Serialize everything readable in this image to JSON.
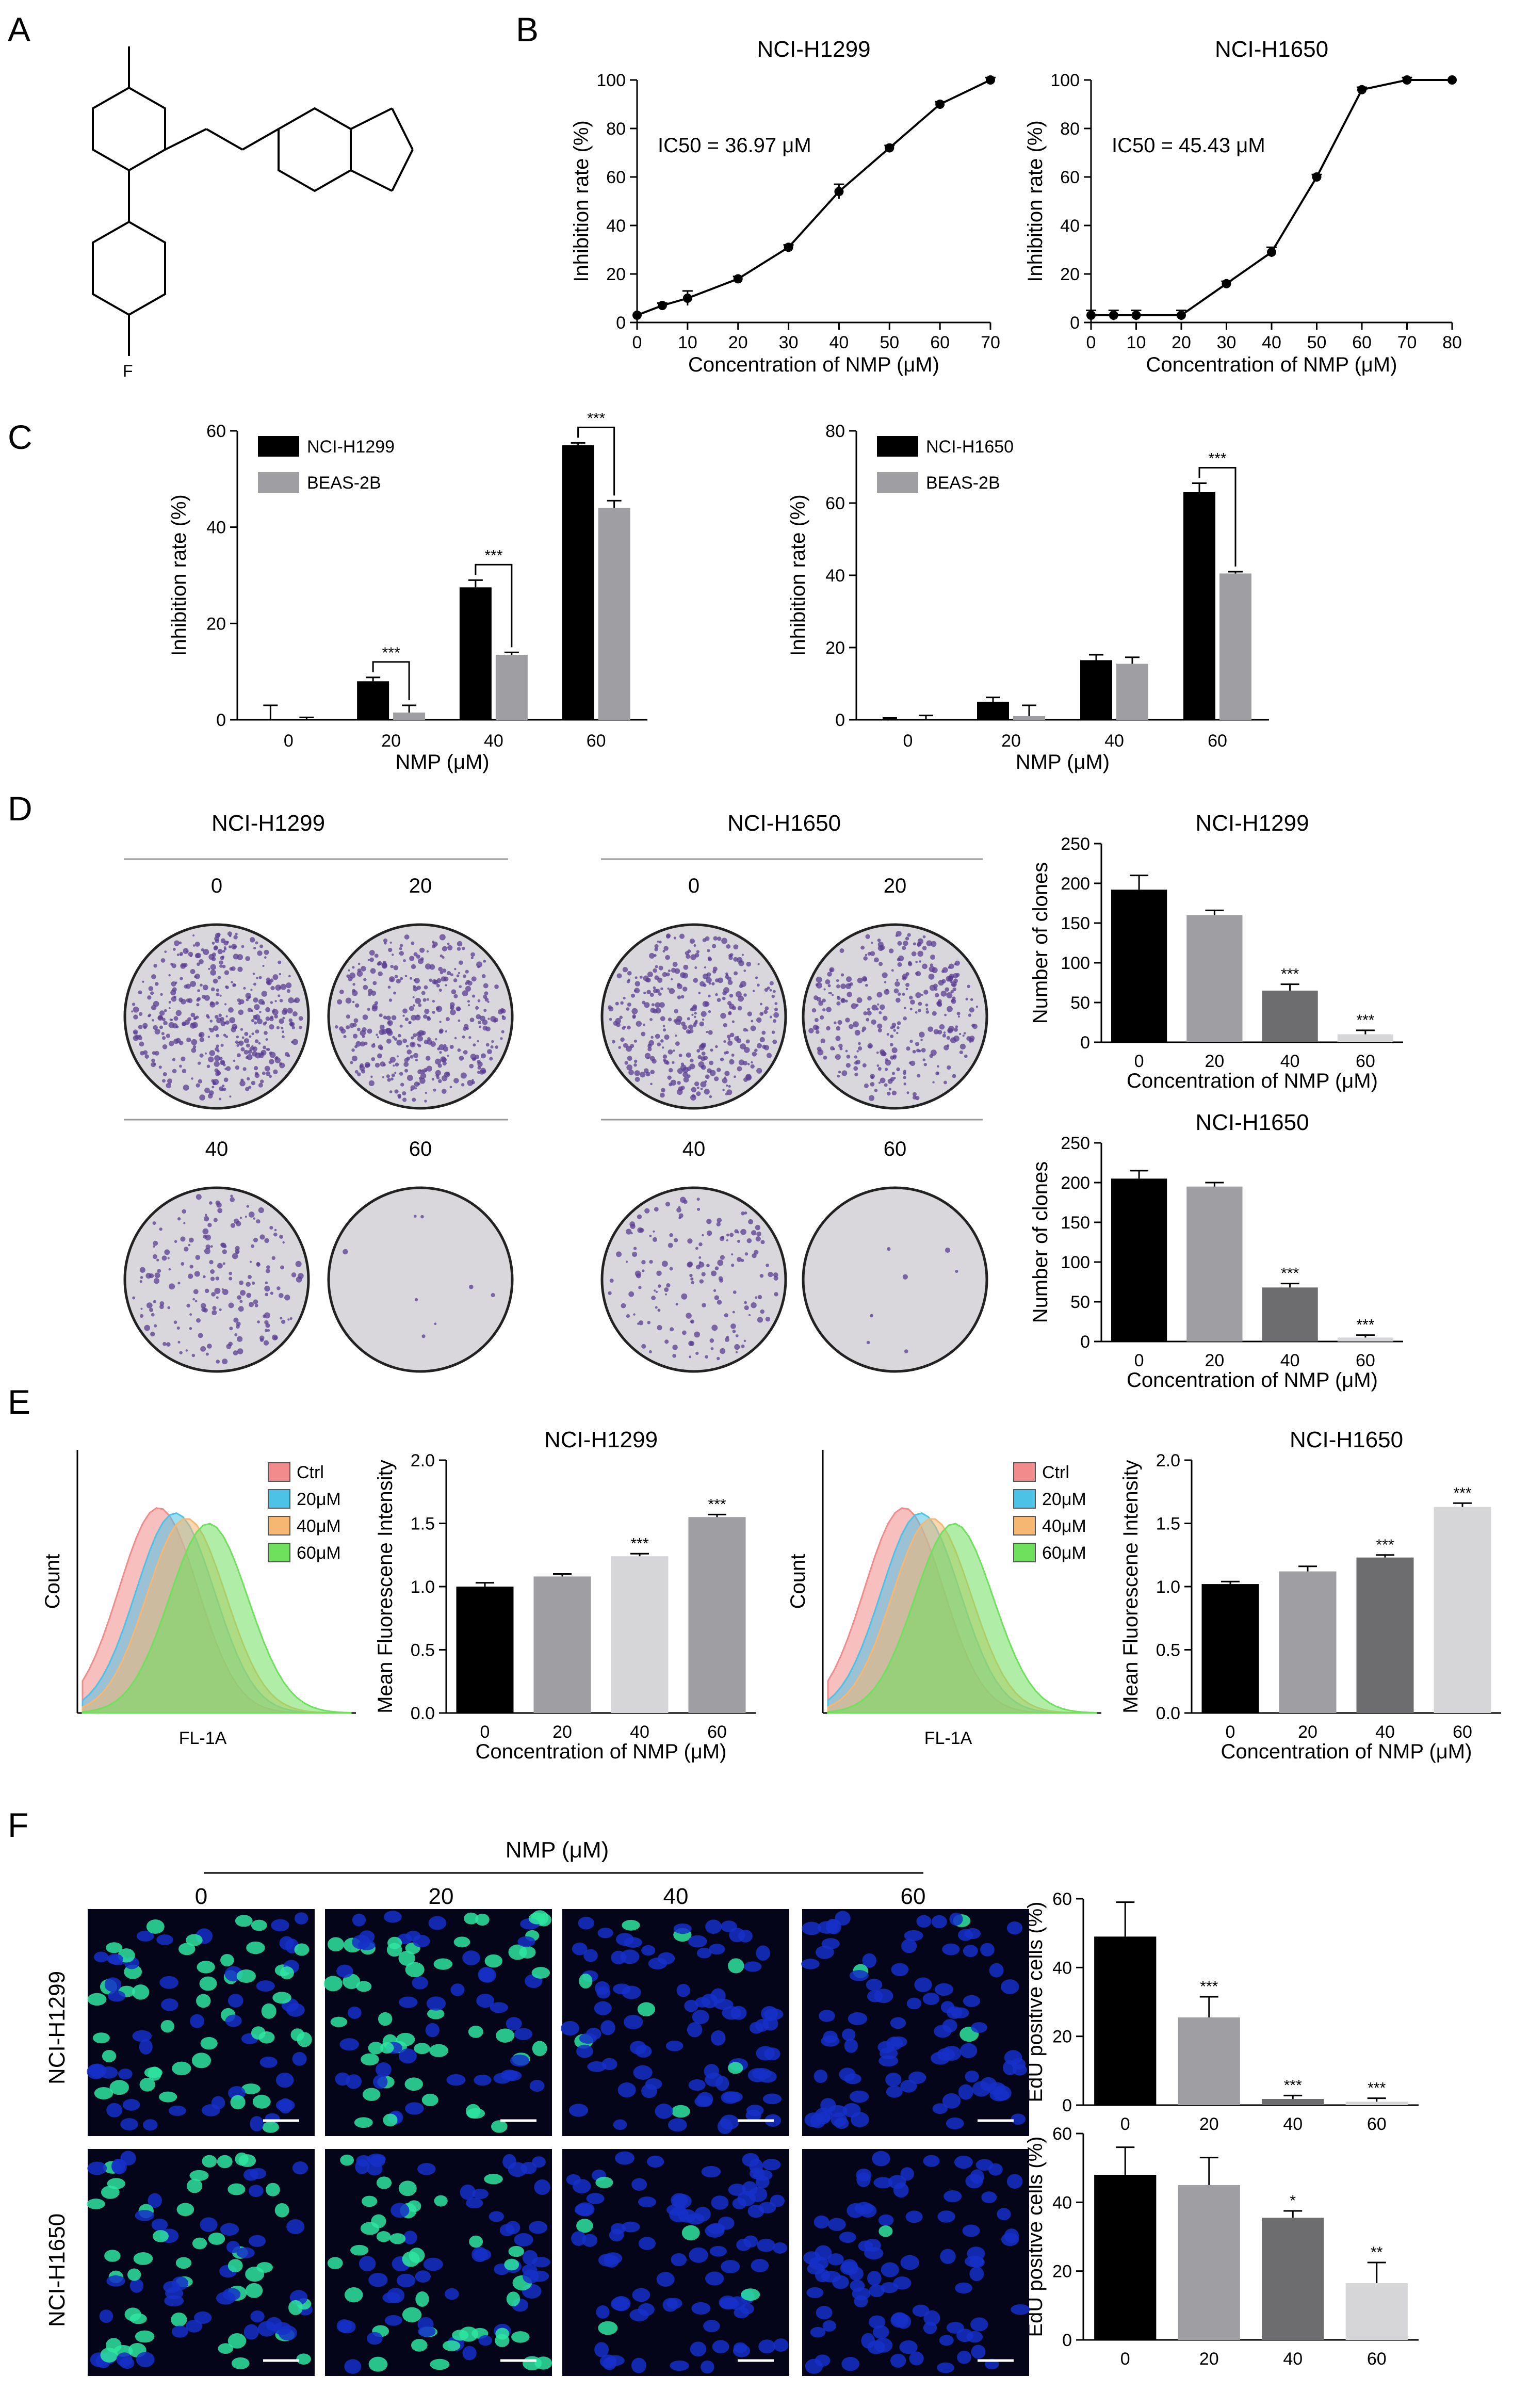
{
  "panel_labels": [
    "A",
    "B",
    "C",
    "D",
    "E",
    "F"
  ],
  "structure": {
    "atom_label": "F"
  },
  "chart_data": [
    {
      "id": "B1",
      "type": "line",
      "title": "NCI-H1299",
      "xlabel": "Concentration of NMP (μM)",
      "ylabel": "Inhibition rate (%)",
      "annotation": "IC50 = 36.97 μM",
      "xlim": [
        0,
        70
      ],
      "ylim": [
        0,
        100
      ],
      "xticks": [
        0,
        10,
        20,
        30,
        40,
        50,
        60,
        70
      ],
      "yticks": [
        0,
        20,
        40,
        60,
        80,
        100
      ],
      "x": [
        0,
        5,
        10,
        20,
        30,
        40,
        50,
        60,
        70
      ],
      "y": [
        3,
        7,
        10,
        18,
        31,
        54,
        72,
        90,
        100
      ],
      "err": [
        0,
        1,
        3,
        1,
        1,
        3,
        1,
        1,
        1
      ]
    },
    {
      "id": "B2",
      "type": "line",
      "title": "NCI-H1650",
      "xlabel": "Concentration of NMP (μM)",
      "ylabel": "Inhibition rate (%)",
      "annotation": "IC50 = 45.43 μM",
      "xlim": [
        0,
        80
      ],
      "ylim": [
        0,
        100
      ],
      "xticks": [
        0,
        10,
        20,
        30,
        40,
        50,
        60,
        70,
        80
      ],
      "yticks": [
        0,
        20,
        40,
        60,
        80,
        100
      ],
      "x": [
        0,
        5,
        10,
        20,
        30,
        40,
        50,
        60,
        70,
        80
      ],
      "y": [
        3,
        3,
        3,
        3,
        16,
        29,
        60,
        96,
        100,
        100
      ],
      "err": [
        2,
        2,
        2,
        2,
        1,
        2,
        1,
        1,
        1,
        0
      ]
    },
    {
      "id": "C1",
      "type": "bar",
      "xlabel": "NMP (μM)",
      "ylabel": "Inhibition rate (%)",
      "categories": [
        "0",
        "20",
        "40",
        "60"
      ],
      "ylim": [
        0,
        60
      ],
      "yticks": [
        0,
        20,
        40,
        60
      ],
      "series": [
        {
          "name": "NCI-H1299",
          "color": "#000000",
          "values": [
            0,
            8,
            27.5,
            57
          ],
          "err": [
            3,
            0.8,
            1.5,
            0.5
          ]
        },
        {
          "name": "BEAS-2B",
          "color": "#9e9ea3",
          "values": [
            0,
            1.5,
            13.5,
            44
          ],
          "err": [
            0.5,
            1.5,
            0.5,
            1.5
          ]
        }
      ],
      "significance": [
        {
          "category": "20",
          "label": "***"
        },
        {
          "category": "40",
          "label": "***"
        },
        {
          "category": "60",
          "label": "***"
        }
      ]
    },
    {
      "id": "C2",
      "type": "bar",
      "xlabel": "NMP (μM)",
      "ylabel": "Inhibition rate (%)",
      "categories": [
        "0",
        "20",
        "40",
        "60"
      ],
      "ylim": [
        0,
        80
      ],
      "yticks": [
        0,
        20,
        40,
        60,
        80
      ],
      "series": [
        {
          "name": "NCI-H1650",
          "color": "#000000",
          "values": [
            0,
            5,
            16.5,
            63
          ],
          "err": [
            0.5,
            1.2,
            1.5,
            2.5
          ]
        },
        {
          "name": "BEAS-2B",
          "color": "#9e9ea3",
          "values": [
            0,
            1,
            15.5,
            40.5
          ],
          "err": [
            1.2,
            3,
            1.8,
            0.5
          ]
        }
      ],
      "significance": [
        {
          "category": "60",
          "label": "***"
        }
      ]
    },
    {
      "id": "D1",
      "type": "bar",
      "title": "NCI-H1299",
      "xlabel": "Concentration of NMP (μM)",
      "ylabel": "Number of clones",
      "categories": [
        "0",
        "20",
        "40",
        "60"
      ],
      "ylim": [
        0,
        250
      ],
      "yticks": [
        0,
        50,
        100,
        150,
        200,
        250
      ],
      "values": [
        192,
        160,
        65,
        10
      ],
      "err": [
        18,
        6,
        8,
        5
      ],
      "colors": [
        "#000000",
        "#9e9ea3",
        "#6d6d70",
        "#d6d6d8"
      ],
      "significance": [
        "",
        "",
        "***",
        "***"
      ]
    },
    {
      "id": "D2",
      "type": "bar",
      "title": "NCI-H1650",
      "xlabel": "Concentration of NMP (μM)",
      "ylabel": "Number of clones",
      "categories": [
        "0",
        "20",
        "40",
        "60"
      ],
      "ylim": [
        0,
        250
      ],
      "yticks": [
        0,
        50,
        100,
        150,
        200,
        250
      ],
      "values": [
        205,
        195,
        68,
        5
      ],
      "err": [
        10,
        5,
        5,
        3
      ],
      "colors": [
        "#000000",
        "#9e9ea3",
        "#6d6d70",
        "#d6d6d8"
      ],
      "significance": [
        "",
        "",
        "***",
        "***"
      ]
    },
    {
      "id": "E1",
      "type": "bar",
      "title": "NCI-H1299",
      "xlabel": "Concentration of NMP (μM)",
      "ylabel": "Mean Fluorescene Intensity",
      "categories": [
        "0",
        "20",
        "40",
        "60"
      ],
      "ylim": [
        0,
        2.0
      ],
      "yticks": [
        0.0,
        0.5,
        1.0,
        1.5,
        2.0
      ],
      "values": [
        1.0,
        1.08,
        1.24,
        1.55
      ],
      "err": [
        0.03,
        0.02,
        0.02,
        0.02
      ],
      "colors": [
        "#000000",
        "#9e9ea3",
        "#d6d6d8",
        "#9e9ea3"
      ],
      "significance": [
        "",
        "",
        "***",
        "***"
      ]
    },
    {
      "id": "E2",
      "type": "bar",
      "title": "NCI-H1650",
      "xlabel": "Concentration of NMP (μM)",
      "ylabel": "Mean Fluorescene Intensity",
      "categories": [
        "0",
        "20",
        "40",
        "60"
      ],
      "ylim": [
        0,
        2.0
      ],
      "yticks": [
        0.0,
        0.5,
        1.0,
        1.5,
        2.0
      ],
      "values": [
        1.02,
        1.12,
        1.23,
        1.63
      ],
      "err": [
        0.02,
        0.04,
        0.02,
        0.03
      ],
      "colors": [
        "#000000",
        "#9e9ea3",
        "#6d6d70",
        "#d6d6d8"
      ],
      "significance": [
        "",
        "",
        "***",
        "***"
      ]
    },
    {
      "id": "E-hist",
      "type": "area",
      "xlabel": "FL-1A",
      "ylabel": "Count",
      "legend": [
        "Ctrl",
        "20μM",
        "40μM",
        "60μM"
      ],
      "legend_colors": [
        "#f28b8b",
        "#4cc3e6",
        "#f5b771",
        "#6fe05e"
      ]
    },
    {
      "id": "F1",
      "type": "bar",
      "ylabel": "EdU positive cells (%)",
      "categories": [
        "0",
        "20",
        "40",
        "60"
      ],
      "ylim": [
        0,
        60
      ],
      "yticks": [
        0,
        20,
        40,
        60
      ],
      "values": [
        49,
        25.5,
        1.8,
        1.0
      ],
      "err": [
        10,
        6,
        1,
        1
      ],
      "colors": [
        "#000000",
        "#9e9ea3",
        "#6d6d70",
        "#d6d6d8"
      ],
      "significance": [
        "",
        "***",
        "***",
        "***"
      ]
    },
    {
      "id": "F2",
      "type": "bar",
      "ylabel": "EdU positive cells (%)",
      "categories": [
        "0",
        "20",
        "40",
        "60"
      ],
      "ylim": [
        0,
        60
      ],
      "yticks": [
        0,
        20,
        40,
        60
      ],
      "values": [
        48,
        45,
        35.5,
        16.5
      ],
      "err": [
        8,
        8,
        2,
        6
      ],
      "colors": [
        "#000000",
        "#9e9ea3",
        "#6d6d70",
        "#d6d6d8"
      ],
      "significance": [
        "",
        "",
        "*",
        "**"
      ]
    }
  ],
  "panel_d": {
    "headers": [
      "NCI-H1299",
      "NCI-H1650"
    ],
    "dose_labels": [
      "0",
      "20",
      "40",
      "60"
    ]
  },
  "panel_f": {
    "header": "NMP (μM)",
    "dose_labels": [
      "0",
      "20",
      "40",
      "60"
    ],
    "row_labels": [
      "NCI-H1299",
      "NCI-H1650"
    ]
  }
}
